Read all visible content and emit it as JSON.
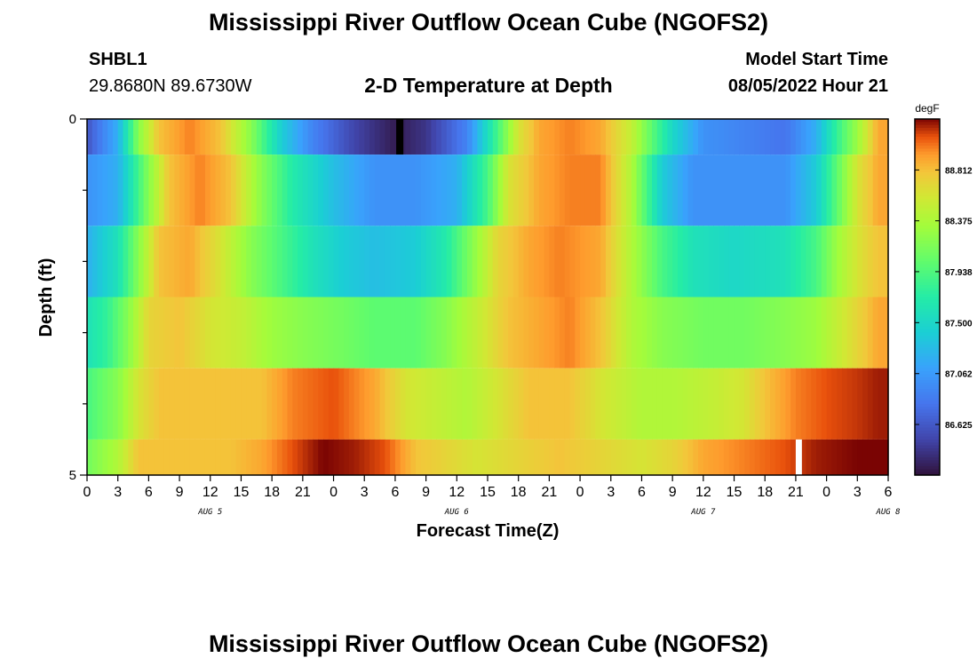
{
  "header": {
    "title": "Mississippi River Outflow Ocean Cube (NGOFS2)",
    "station": "SHBL1",
    "coordinates": "29.8680N  89.6730W",
    "subtitle": "2-D Temperature at Depth",
    "start_label": "Model Start Time",
    "start_value": "08/05/2022 Hour 21"
  },
  "footer": {
    "title": "Mississippi River Outflow Ocean Cube (NGOFS2)"
  },
  "chart_data": {
    "type": "heatmap",
    "title": "2-D Temperature at Depth",
    "xlabel": "Forecast Time(Z)",
    "ylabel": "Depth (ft)",
    "x_tick_labels": [
      "0",
      "3",
      "6",
      "9",
      "12",
      "15",
      "18",
      "21",
      "0",
      "3",
      "6",
      "9",
      "12",
      "15",
      "18",
      "21",
      "0",
      "3",
      "6",
      "9",
      "12",
      "15",
      "18",
      "21",
      "0",
      "3",
      "6"
    ],
    "x_date_labels": [
      {
        "label": "AUG 5",
        "hour": 12
      },
      {
        "label": "AUG 6",
        "hour": 36
      },
      {
        "label": "AUG 7",
        "hour": 60
      },
      {
        "label": "AUG 8",
        "hour": 78
      }
    ],
    "x_range_hours": [
      0,
      78
    ],
    "y_tick_labels": [
      "0",
      "5"
    ],
    "y_range": [
      0,
      5
    ],
    "colorbar": {
      "unit": "degF",
      "ticks": [
        "88.812",
        "88.375",
        "87.938",
        "87.500",
        "87.062",
        "86.625"
      ],
      "min": 86.19,
      "max": 89.25
    },
    "rows": [
      {
        "depth_range": [
          0,
          0.5
        ],
        "keypoints": [
          [
            0,
            86.6
          ],
          [
            3,
            87.2
          ],
          [
            5,
            88.2
          ],
          [
            7,
            88.8
          ],
          [
            10,
            89.0
          ],
          [
            13,
            88.8
          ],
          [
            16,
            88.2
          ],
          [
            19,
            87.4
          ],
          [
            22,
            86.9
          ],
          [
            26,
            86.5
          ],
          [
            30,
            86.25
          ],
          [
            33,
            86.4
          ],
          [
            37,
            86.9
          ],
          [
            40,
            87.9
          ],
          [
            42,
            88.6
          ],
          [
            44,
            88.9
          ],
          [
            47,
            89.0
          ],
          [
            50,
            88.9
          ],
          [
            53,
            88.5
          ],
          [
            55,
            88.0
          ],
          [
            57,
            87.5
          ],
          [
            60,
            87.0
          ],
          [
            64,
            86.9
          ],
          [
            68,
            86.8
          ],
          [
            71,
            87.2
          ],
          [
            73,
            87.8
          ],
          [
            75,
            88.3
          ],
          [
            77,
            88.9
          ]
        ],
        "missing": [
          {
            "hour_from": 30.1,
            "hour_to": 30.8
          }
        ]
      },
      {
        "depth_range": [
          0.5,
          1.5
        ],
        "keypoints": [
          [
            0,
            87.0
          ],
          [
            3,
            87.2
          ],
          [
            6,
            88.2
          ],
          [
            8,
            88.8
          ],
          [
            11,
            89.0
          ],
          [
            14,
            88.8
          ],
          [
            17,
            88.2
          ],
          [
            20,
            87.7
          ],
          [
            24,
            87.3
          ],
          [
            28,
            87.0
          ],
          [
            32,
            87.0
          ],
          [
            36,
            87.2
          ],
          [
            39,
            87.9
          ],
          [
            41,
            88.6
          ],
          [
            44,
            88.9
          ],
          [
            47,
            89.0
          ],
          [
            50,
            89.0
          ],
          [
            53,
            88.4
          ],
          [
            56,
            87.4
          ],
          [
            59,
            87.0
          ],
          [
            63,
            87.0
          ],
          [
            68,
            87.0
          ],
          [
            71,
            87.4
          ],
          [
            73,
            88.0
          ],
          [
            75,
            88.6
          ],
          [
            77,
            88.9
          ]
        ]
      },
      {
        "depth_range": [
          1.5,
          2.5
        ],
        "keypoints": [
          [
            0,
            87.2
          ],
          [
            3,
            87.6
          ],
          [
            5,
            88.2
          ],
          [
            7,
            88.8
          ],
          [
            10,
            88.9
          ],
          [
            13,
            88.6
          ],
          [
            16,
            88.2
          ],
          [
            19,
            87.9
          ],
          [
            22,
            87.6
          ],
          [
            25,
            87.4
          ],
          [
            28,
            87.3
          ],
          [
            32,
            87.4
          ],
          [
            35,
            87.7
          ],
          [
            38,
            88.3
          ],
          [
            40,
            88.7
          ],
          [
            43,
            88.9
          ],
          [
            46,
            89.0
          ],
          [
            50,
            88.9
          ],
          [
            53,
            88.4
          ],
          [
            56,
            87.9
          ],
          [
            59,
            87.6
          ],
          [
            63,
            87.5
          ],
          [
            68,
            87.6
          ],
          [
            71,
            87.9
          ],
          [
            73,
            88.3
          ],
          [
            75,
            88.6
          ],
          [
            77,
            88.8
          ]
        ]
      },
      {
        "depth_range": [
          2.5,
          3.5
        ],
        "keypoints": [
          [
            0,
            87.6
          ],
          [
            2,
            87.8
          ],
          [
            4,
            88.2
          ],
          [
            6,
            88.7
          ],
          [
            9,
            88.8
          ],
          [
            12,
            88.6
          ],
          [
            15,
            88.5
          ],
          [
            18,
            88.3
          ],
          [
            21,
            88.2
          ],
          [
            25,
            88.1
          ],
          [
            28,
            88.0
          ],
          [
            32,
            88.0
          ],
          [
            35,
            88.2
          ],
          [
            38,
            88.5
          ],
          [
            41,
            88.8
          ],
          [
            44,
            88.9
          ],
          [
            47,
            89.0
          ],
          [
            50,
            88.8
          ],
          [
            53,
            88.4
          ],
          [
            56,
            88.2
          ],
          [
            60,
            88.1
          ],
          [
            64,
            88.1
          ],
          [
            68,
            88.2
          ],
          [
            71,
            88.3
          ],
          [
            73,
            88.5
          ],
          [
            75,
            88.7
          ],
          [
            77,
            88.9
          ]
        ]
      },
      {
        "depth_range": [
          3.5,
          4.5
        ],
        "keypoints": [
          [
            0,
            87.9
          ],
          [
            3,
            88.2
          ],
          [
            5,
            88.6
          ],
          [
            7,
            88.8
          ],
          [
            10,
            88.8
          ],
          [
            14,
            88.8
          ],
          [
            17,
            88.8
          ],
          [
            20,
            89.0
          ],
          [
            24,
            89.1
          ],
          [
            28,
            88.9
          ],
          [
            31,
            88.6
          ],
          [
            34,
            88.5
          ],
          [
            37,
            88.4
          ],
          [
            40,
            88.6
          ],
          [
            43,
            88.8
          ],
          [
            47,
            88.8
          ],
          [
            50,
            88.6
          ],
          [
            54,
            88.4
          ],
          [
            57,
            88.4
          ],
          [
            61,
            88.5
          ],
          [
            64,
            88.6
          ],
          [
            66,
            88.8
          ],
          [
            69,
            89.0
          ],
          [
            72,
            89.1
          ],
          [
            75,
            89.15
          ],
          [
            77,
            89.2
          ]
        ]
      },
      {
        "depth_range": [
          4.5,
          5
        ],
        "keypoints": [
          [
            0,
            88.1
          ],
          [
            3,
            88.4
          ],
          [
            5,
            88.8
          ],
          [
            8,
            88.8
          ],
          [
            11,
            88.8
          ],
          [
            14,
            88.8
          ],
          [
            17,
            88.9
          ],
          [
            20,
            89.1
          ],
          [
            23,
            89.25
          ],
          [
            26,
            89.2
          ],
          [
            29,
            89.1
          ],
          [
            32,
            88.8
          ],
          [
            35,
            88.7
          ],
          [
            38,
            88.6
          ],
          [
            42,
            88.7
          ],
          [
            46,
            88.8
          ],
          [
            50,
            88.7
          ],
          [
            54,
            88.6
          ],
          [
            57,
            88.7
          ],
          [
            60,
            88.9
          ],
          [
            64,
            89.0
          ],
          [
            68,
            89.1
          ],
          [
            71,
            89.2
          ],
          [
            75,
            89.25
          ],
          [
            78,
            89.25
          ]
        ],
        "missing": [
          {
            "hour_from": 69.0,
            "hour_to": 69.6
          }
        ]
      }
    ],
    "colors": {
      "missing_row0": "#000000",
      "missing_row5": "#ffffff"
    }
  }
}
